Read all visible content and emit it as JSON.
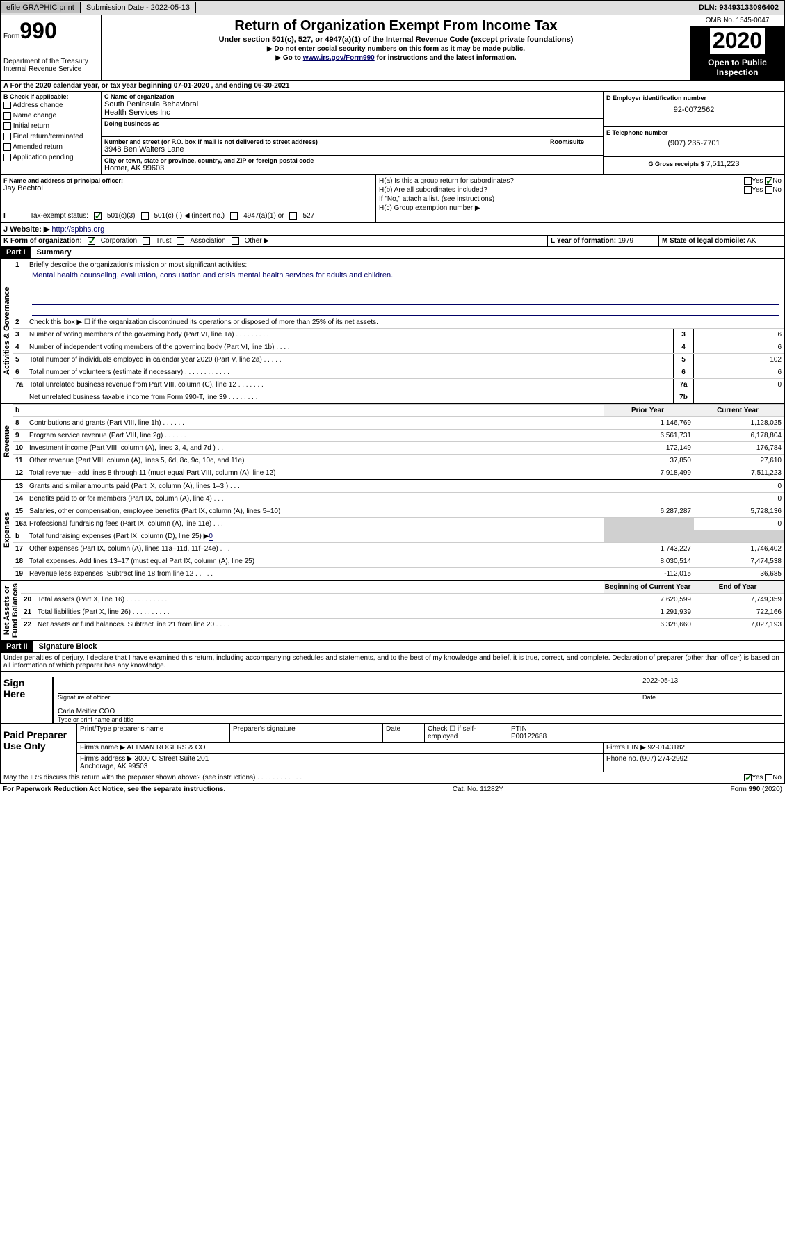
{
  "top": {
    "efile": "efile GRAPHIC print",
    "submission_label": "Submission Date - 2022-05-13",
    "dln": "DLN: 93493133096402"
  },
  "header": {
    "form_label": "Form",
    "form_no": "990",
    "dept": "Department of the Treasury\nInternal Revenue Service",
    "title": "Return of Organization Exempt From Income Tax",
    "subtitle": "Under section 501(c), 527, or 4947(a)(1) of the Internal Revenue Code (except private foundations)",
    "instr1": "▶ Do not enter social security numbers on this form as it may be made public.",
    "instr2_pre": "▶ Go to ",
    "instr2_link": "www.irs.gov/Form990",
    "instr2_post": " for instructions and the latest information.",
    "omb": "OMB No. 1545-0047",
    "year": "2020",
    "public1": "Open to Public",
    "public2": "Inspection"
  },
  "sectionA": "A For the 2020 calendar year, or tax year beginning 07-01-2020     , and ending 06-30-2021",
  "boxB": {
    "label": "B Check if applicable:",
    "items": [
      "Address change",
      "Name change",
      "Initial return",
      "Final return/terminated",
      "Amended return",
      "Application pending"
    ]
  },
  "boxC": {
    "name_label": "C Name of organization",
    "name": "South Peninsula Behavioral\nHealth Services Inc",
    "dba_label": "Doing business as",
    "street_label": "Number and street (or P.O. box if mail is not delivered to street address)",
    "room_label": "Room/suite",
    "street": "3948 Ben Walters Lane",
    "city_label": "City or town, state or province, country, and ZIP or foreign postal code",
    "city": "Homer, AK  99603"
  },
  "boxD": {
    "label": "D Employer identification number",
    "value": "92-0072562"
  },
  "boxE": {
    "label": "E Telephone number",
    "value": "(907) 235-7701"
  },
  "boxG": {
    "label": "G Gross receipts $",
    "value": "7,511,223"
  },
  "boxF": {
    "label": "F Name and address of principal officer:",
    "value": "Jay Bechtol"
  },
  "boxH": {
    "a": "H(a)  Is this a group return for subordinates?",
    "b": "H(b)  Are all subordinates included?",
    "b_note": "If \"No,\" attach a list. (see instructions)",
    "c": "H(c)  Group exemption number ▶",
    "yes": "Yes",
    "no": "No"
  },
  "boxI": {
    "label": "Tax-exempt status:",
    "opts": [
      "501(c)(3)",
      "501(c) (  ) ◀ (insert no.)",
      "4947(a)(1) or",
      "527"
    ]
  },
  "boxJ": {
    "label": "J Website: ▶",
    "value": "http://spbhs.org"
  },
  "boxK": {
    "label": "K Form of organization:",
    "opts": [
      "Corporation",
      "Trust",
      "Association",
      "Other ▶"
    ]
  },
  "boxL": {
    "label": "L Year of formation:",
    "value": "1979"
  },
  "boxM": {
    "label": "M State of legal domicile:",
    "value": "AK"
  },
  "part1": {
    "label": "Part I",
    "title": "Summary"
  },
  "governance_label": "Activities & Governance",
  "revenue_label": "Revenue",
  "expenses_label": "Expenses",
  "netassets_label": "Net Assets or\nFund Balances",
  "lines": {
    "l1": {
      "num": "1",
      "desc": "Briefly describe the organization's mission or most significant activities:"
    },
    "mission": "Mental health counseling, evaluation, consultation and crisis mental health services for adults and children.",
    "l2": {
      "num": "2",
      "desc": "Check this box ▶ ☐ if the organization discontinued its operations or disposed of more than 25% of its net assets."
    },
    "l3": {
      "num": "3",
      "desc": "Number of voting members of the governing body (Part VI, line 1a)  .  .  .  .  .  .  .  .  .",
      "box": "3",
      "v": "6"
    },
    "l4": {
      "num": "4",
      "desc": "Number of independent voting members of the governing body (Part VI, line 1b)  .  .  .  .",
      "box": "4",
      "v": "6"
    },
    "l5": {
      "num": "5",
      "desc": "Total number of individuals employed in calendar year 2020 (Part V, line 2a)  .  .  .  .  .",
      "box": "5",
      "v": "102"
    },
    "l6": {
      "num": "6",
      "desc": "Total number of volunteers (estimate if necessary)  .  .  .  .  .  .  .  .  .  .  .  .",
      "box": "6",
      "v": "6"
    },
    "l7a": {
      "num": "7a",
      "desc": "Total unrelated business revenue from Part VIII, column (C), line 12  .  .  .  .  .  .  .",
      "box": "7a",
      "v": "0"
    },
    "l7b": {
      "num": "",
      "desc": "Net unrelated business taxable income from Form 990-T, line 39  .  .  .  .  .  .  .  .",
      "box": "7b",
      "v": ""
    },
    "col_prior": "Prior Year",
    "col_current": "Current Year",
    "l8": {
      "num": "8",
      "desc": "Contributions and grants (Part VIII, line 1h)  .  .  .  .  .  .",
      "py": "1,146,769",
      "cy": "1,128,025"
    },
    "l9": {
      "num": "9",
      "desc": "Program service revenue (Part VIII, line 2g)  .  .  .  .  .  .",
      "py": "6,561,731",
      "cy": "6,178,804"
    },
    "l10": {
      "num": "10",
      "desc": "Investment income (Part VIII, column (A), lines 3, 4, and 7d )  .  .",
      "py": "172,149",
      "cy": "176,784"
    },
    "l11": {
      "num": "11",
      "desc": "Other revenue (Part VIII, column (A), lines 5, 6d, 8c, 9c, 10c, and 11e)",
      "py": "37,850",
      "cy": "27,610"
    },
    "l12": {
      "num": "12",
      "desc": "Total revenue—add lines 8 through 11 (must equal Part VIII, column (A), line 12)",
      "py": "7,918,499",
      "cy": "7,511,223"
    },
    "l13": {
      "num": "13",
      "desc": "Grants and similar amounts paid (Part IX, column (A), lines 1–3 )  .  .  .",
      "py": "",
      "cy": "0"
    },
    "l14": {
      "num": "14",
      "desc": "Benefits paid to or for members (Part IX, column (A), line 4)  .  .  .",
      "py": "",
      "cy": "0"
    },
    "l15": {
      "num": "15",
      "desc": "Salaries, other compensation, employee benefits (Part IX, column (A), lines 5–10)",
      "py": "6,287,287",
      "cy": "5,728,136"
    },
    "l16a": {
      "num": "16a",
      "desc": "Professional fundraising fees (Part IX, column (A), line 11e)  .  .  .",
      "py": "",
      "cy": "0"
    },
    "l16b": {
      "num": "b",
      "desc": "Total fundraising expenses (Part IX, column (D), line 25) ▶",
      "v": "0"
    },
    "l17": {
      "num": "17",
      "desc": "Other expenses (Part IX, column (A), lines 11a–11d, 11f–24e)  .  .  .",
      "py": "1,743,227",
      "cy": "1,746,402"
    },
    "l18": {
      "num": "18",
      "desc": "Total expenses. Add lines 13–17 (must equal Part IX, column (A), line 25)",
      "py": "8,030,514",
      "cy": "7,474,538"
    },
    "l19": {
      "num": "19",
      "desc": "Revenue less expenses. Subtract line 18 from line 12  .  .  .  .  .",
      "py": "-112,015",
      "cy": "36,685"
    },
    "col_begin": "Beginning of Current Year",
    "col_end": "End of Year",
    "l20": {
      "num": "20",
      "desc": "Total assets (Part X, line 16)  .  .  .  .  .  .  .  .  .  .  .",
      "py": "7,620,599",
      "cy": "7,749,359"
    },
    "l21": {
      "num": "21",
      "desc": "Total liabilities (Part X, line 26)  .  .  .  .  .  .  .  .  .  .",
      "py": "1,291,939",
      "cy": "722,166"
    },
    "l22": {
      "num": "22",
      "desc": "Net assets or fund balances. Subtract line 21 from line 20  .  .  .  .",
      "py": "6,328,660",
      "cy": "7,027,193"
    }
  },
  "part2": {
    "label": "Part II",
    "title": "Signature Block"
  },
  "perjury": "Under penalties of perjury, I declare that I have examined this return, including accompanying schedules and statements, and to the best of my knowledge and belief, it is true, correct, and complete. Declaration of preparer (other than officer) is based on all information of which preparer has any knowledge.",
  "sign": {
    "here": "Sign Here",
    "sig_label": "Signature of officer",
    "date_label": "Date",
    "date": "2022-05-13",
    "name": "Carla Meitler COO",
    "name_label": "Type or print name and title"
  },
  "prep": {
    "left": "Paid Preparer Use Only",
    "h1": "Print/Type preparer's name",
    "h2": "Preparer's signature",
    "h3": "Date",
    "h4": "Check ☐ if self-employed",
    "h5_label": "PTIN",
    "h5": "P00122688",
    "firm_label": "Firm's name   ▶",
    "firm": "ALTMAN ROGERS & CO",
    "ein_label": "Firm's EIN ▶",
    "ein": "92-0143182",
    "addr_label": "Firm's address ▶",
    "addr": "3000 C Street Suite 201\nAnchorage, AK  99503",
    "phone_label": "Phone no.",
    "phone": "(907) 274-2992"
  },
  "discuss": "May the IRS discuss this return with the preparer shown above? (see instructions)  .  .  .  .  .  .  .  .  .  .  .  .",
  "footer": {
    "paperwork": "For Paperwork Reduction Act Notice, see the separate instructions.",
    "cat": "Cat. No. 11282Y",
    "form": "Form 990 (2020)"
  }
}
